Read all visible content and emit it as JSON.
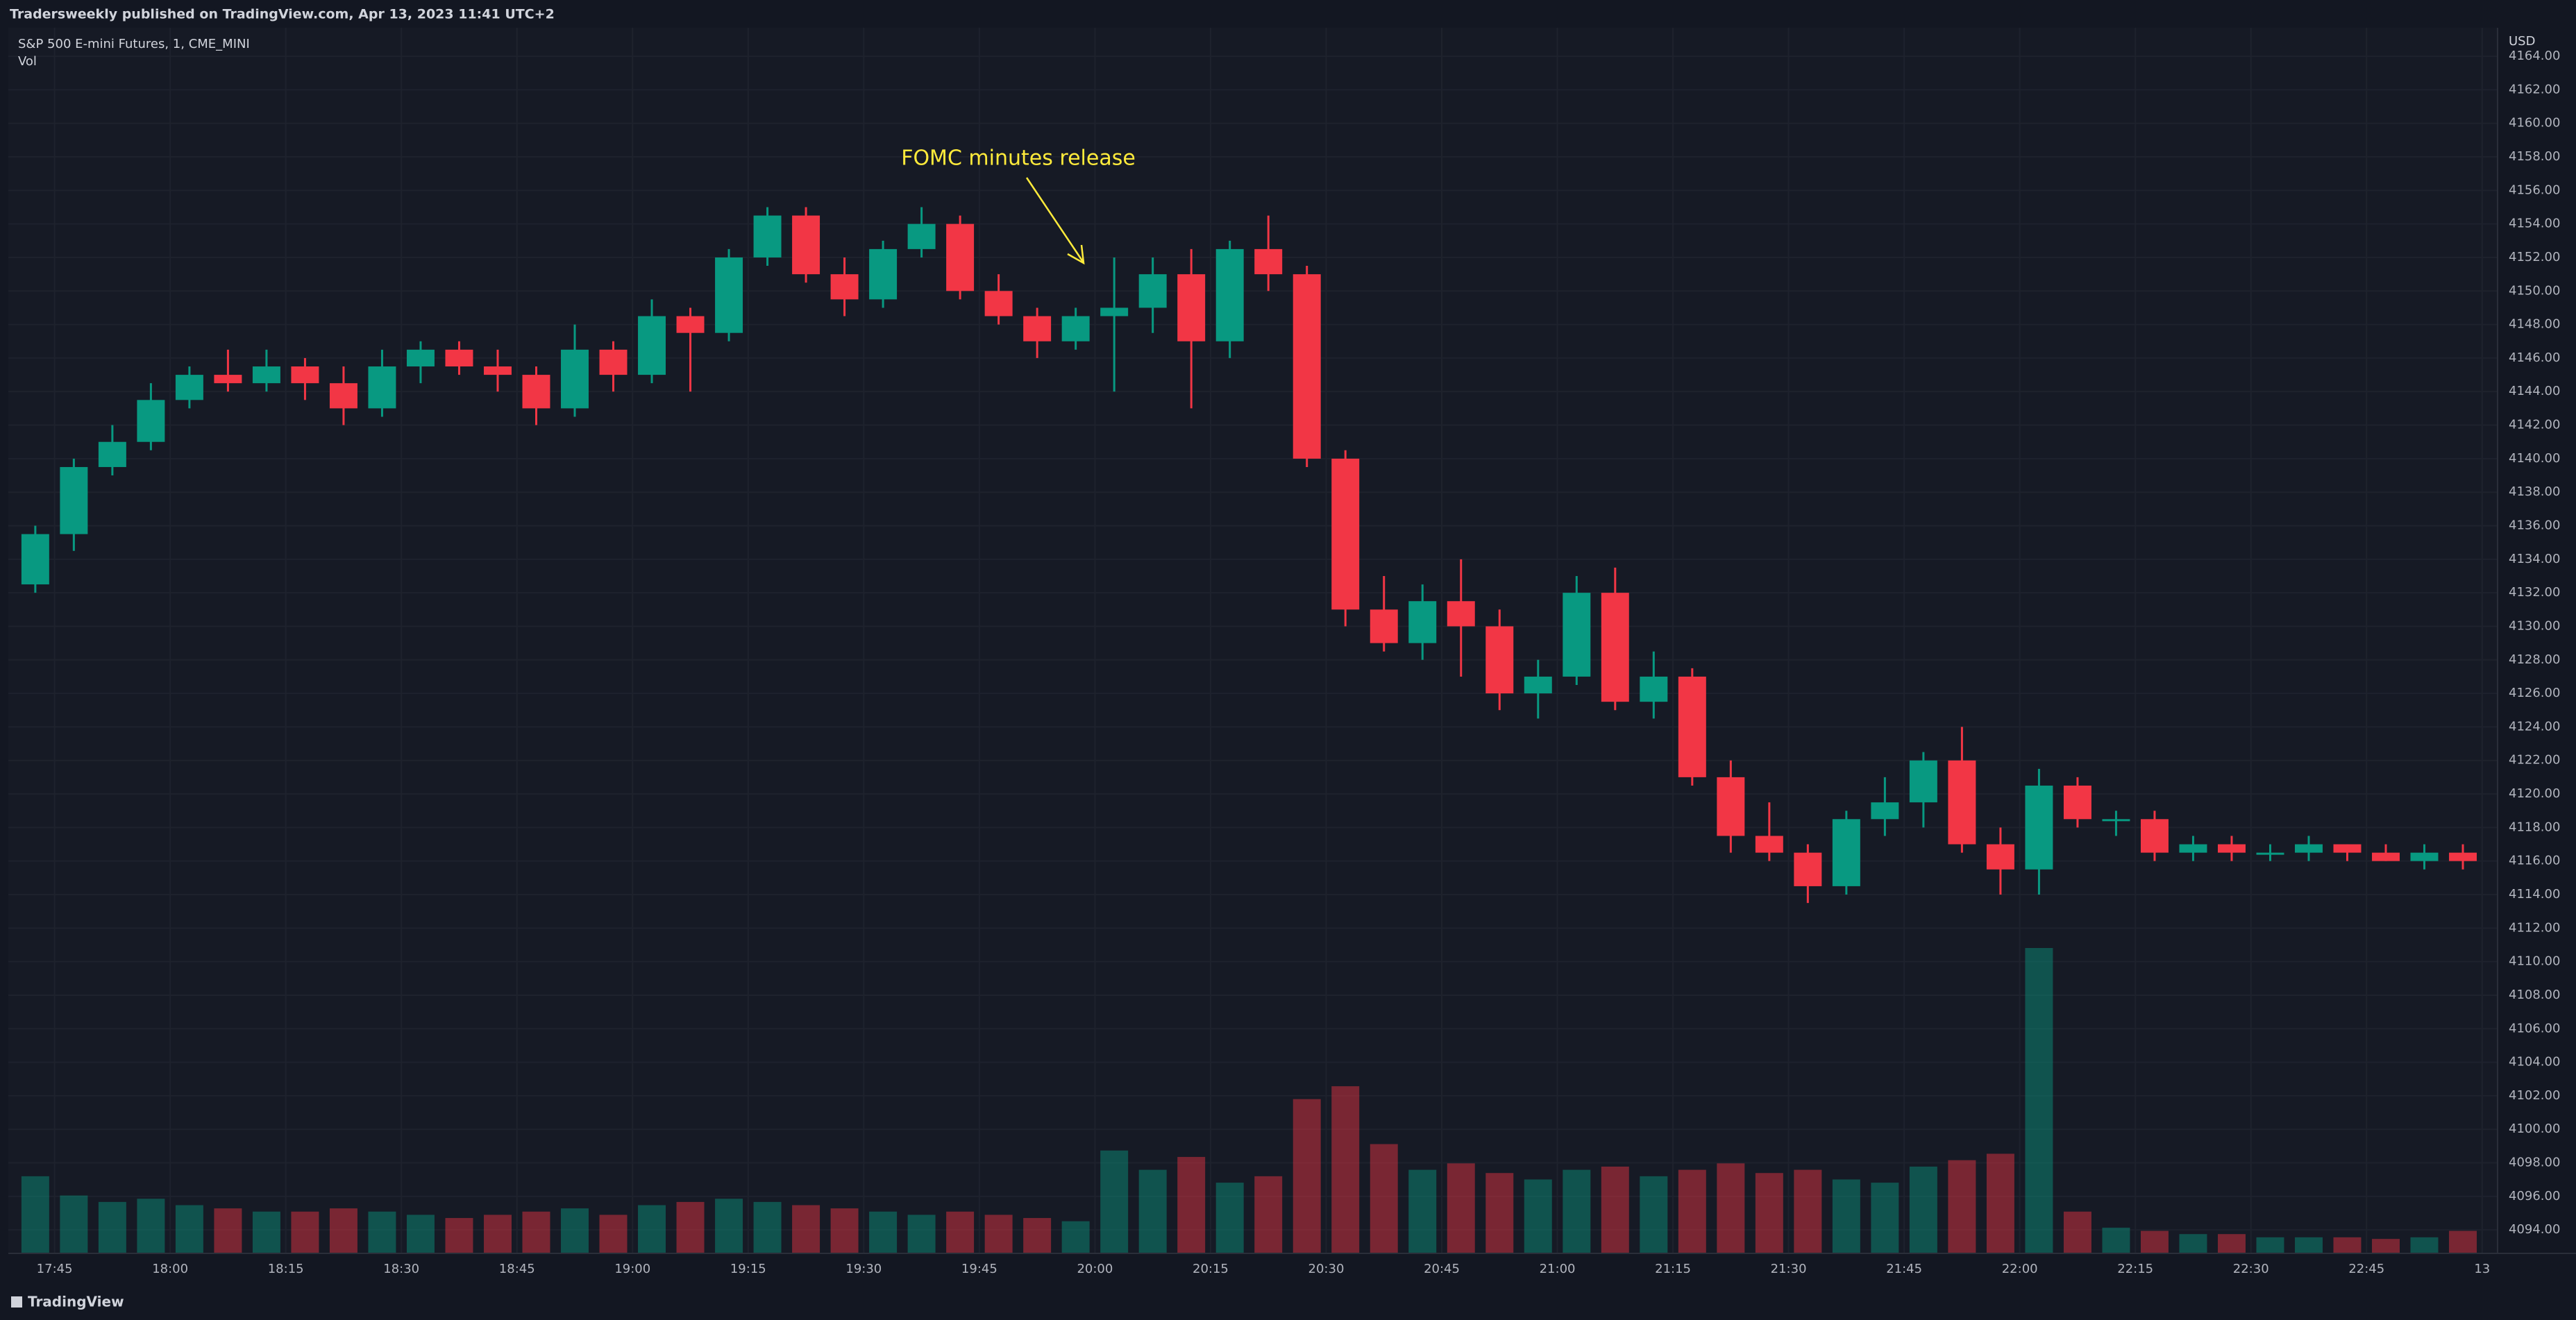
{
  "header": {
    "publisher": "Tradersweekly published on TradingView.com, Apr 13, 2023 11:41 UTC+2",
    "symbol": "S&P 500 E-mini Futures, 1, CME_MINI",
    "study": "Vol",
    "currency": "USD"
  },
  "footer": {
    "brand": "TradingView"
  },
  "chart_data": {
    "type": "candlestick",
    "annotation": "FOMC minutes release",
    "up_color": "#089981",
    "down_color": "#f23645",
    "x": [
      "17:40",
      "17:45",
      "17:50",
      "17:55",
      "18:00",
      "18:05",
      "18:10",
      "18:15",
      "18:20",
      "18:25",
      "18:30",
      "18:35",
      "18:40",
      "18:45",
      "18:50",
      "18:55",
      "19:00",
      "19:05",
      "19:10",
      "19:15",
      "19:20",
      "19:25",
      "19:30",
      "19:35",
      "19:40",
      "19:45",
      "19:50",
      "19:55",
      "20:00",
      "20:05",
      "20:10",
      "20:15",
      "20:20",
      "20:25",
      "20:30",
      "20:35",
      "20:40",
      "20:45",
      "20:50",
      "20:55",
      "21:00",
      "21:05",
      "21:10",
      "21:15",
      "21:20",
      "21:25",
      "21:30",
      "21:35",
      "21:40",
      "21:45",
      "21:50",
      "21:55",
      "22:00",
      "22:05",
      "22:10",
      "22:15",
      "22:20",
      "22:25",
      "22:30",
      "22:35",
      "22:40",
      "22:45",
      "22:50",
      "22:55"
    ],
    "open": [
      4132.5,
      4135.5,
      4139.5,
      4141,
      4143.5,
      4145,
      4144.5,
      4145.5,
      4144.5,
      4143,
      4145.5,
      4146.5,
      4145.5,
      4145,
      4143,
      4146.5,
      4145,
      4148.5,
      4147.5,
      4152,
      4154.5,
      4151,
      4149.5,
      4152.5,
      4154,
      4150,
      4148.5,
      4147,
      4148.5,
      4149,
      4151,
      4147,
      4152.5,
      4151,
      4140,
      4131,
      4129,
      4131.5,
      4130,
      4126,
      4127,
      4132,
      4125.5,
      4127,
      4121,
      4117.5,
      4116.5,
      4114.5,
      4118.5,
      4119.5,
      4122,
      4117,
      4115.5,
      4120.5,
      4118.5,
      4118.5,
      4116.5,
      4117,
      4116.5,
      4116.5,
      4117,
      4116.5,
      4116,
      4116.5
    ],
    "high": [
      4136,
      4140,
      4142,
      4144.5,
      4145.5,
      4146.5,
      4146.5,
      4146,
      4145.5,
      4146.5,
      4147,
      4147,
      4146.5,
      4145.5,
      4148,
      4147,
      4149.5,
      4149,
      4152.5,
      4155,
      4155,
      4152,
      4153,
      4155,
      4154.5,
      4151,
      4149,
      4149,
      4152,
      4152,
      4152.5,
      4153,
      4154.5,
      4151.5,
      4140.5,
      4133,
      4132.5,
      4134,
      4131,
      4128,
      4133,
      4133.5,
      4128.5,
      4127.5,
      4122,
      4119.5,
      4117,
      4119,
      4121,
      4122.5,
      4124,
      4118,
      4121.5,
      4121,
      4119,
      4119,
      4117.5,
      4117.5,
      4117,
      4117.5,
      4117,
      4117,
      4117,
      4117
    ],
    "low": [
      4132,
      4134.5,
      4139,
      4140.5,
      4143,
      4144,
      4144,
      4143.5,
      4142,
      4142.5,
      4144.5,
      4145,
      4144,
      4142,
      4142.5,
      4144,
      4144.5,
      4144,
      4147,
      4151.5,
      4150.5,
      4148.5,
      4149,
      4152,
      4149.5,
      4148,
      4146,
      4146.5,
      4144,
      4147.5,
      4143,
      4146,
      4150,
      4139.5,
      4130,
      4128.5,
      4128,
      4127,
      4125,
      4124.5,
      4126.5,
      4125,
      4124.5,
      4120.5,
      4116.5,
      4116,
      4113.5,
      4114,
      4117.5,
      4118,
      4116.5,
      4114,
      4114,
      4118,
      4117.5,
      4116,
      4116,
      4116,
      4116,
      4116,
      4116,
      4116,
      4115.5,
      4115.5
    ],
    "close": [
      4135.5,
      4139.5,
      4141,
      4143.5,
      4145,
      4144.5,
      4145.5,
      4144.5,
      4143,
      4145.5,
      4146.5,
      4145.5,
      4145,
      4143,
      4146.5,
      4145,
      4148.5,
      4147.5,
      4152,
      4154.5,
      4151,
      4149.5,
      4152.5,
      4154,
      4150,
      4148.5,
      4147,
      4148.5,
      4149,
      4151,
      4147,
      4152.5,
      4151,
      4140,
      4131,
      4129,
      4131.5,
      4130,
      4126,
      4127,
      4132,
      4125.5,
      4127,
      4121,
      4117.5,
      4116.5,
      4114.5,
      4118.5,
      4119.5,
      4122,
      4117,
      4115.5,
      4120.5,
      4118.5,
      4118.5,
      4116.5,
      4117,
      4116.5,
      4116.5,
      4117,
      4116.5,
      4116,
      4116.5,
      4116
    ],
    "volume": [
      2400,
      1800,
      1600,
      1700,
      1500,
      1400,
      1300,
      1300,
      1400,
      1300,
      1200,
      1100,
      1200,
      1300,
      1400,
      1200,
      1500,
      1600,
      1700,
      1600,
      1500,
      1400,
      1300,
      1200,
      1300,
      1200,
      1100,
      1000,
      3200,
      2600,
      3000,
      2200,
      2400,
      4800,
      5200,
      3400,
      2600,
      2800,
      2500,
      2300,
      2600,
      2700,
      2400,
      2600,
      2800,
      2500,
      2600,
      2300,
      2200,
      2700,
      2900,
      3100,
      9500,
      1300,
      800,
      700,
      600,
      600,
      500,
      500,
      500,
      450,
      500,
      700
    ],
    "xlim": [
      "17:39",
      "23:02"
    ],
    "xticks": [
      "17:45",
      "18:00",
      "18:15",
      "18:30",
      "18:45",
      "19:00",
      "19:15",
      "19:30",
      "19:45",
      "20:00",
      "20:15",
      "20:30",
      "20:45",
      "21:00",
      "21:15",
      "21:30",
      "21:45",
      "22:00",
      "22:15",
      "22:30",
      "22:45",
      {
        "value": "23:00",
        "label": "13"
      }
    ],
    "ylim": [
      4092.6,
      4165.7
    ],
    "yticks": [
      {
        "value": 4094,
        "label": "4094.00"
      },
      {
        "value": 4096,
        "label": "4096.00"
      },
      {
        "value": 4098,
        "label": "4098.00"
      },
      {
        "value": 4100,
        "label": "4100.00"
      },
      {
        "value": 4102,
        "label": "4102.00"
      },
      {
        "value": 4104,
        "label": "4104.00"
      },
      {
        "value": 4106,
        "label": "4106.00"
      },
      {
        "value": 4108,
        "label": "4108.00"
      },
      {
        "value": 4110,
        "label": "4110.00"
      },
      {
        "value": 4112,
        "label": "4112.00"
      },
      {
        "value": 4114,
        "label": "4114.00"
      },
      {
        "value": 4116,
        "label": "4116.00"
      },
      {
        "value": 4118,
        "label": "4118.00"
      },
      {
        "value": 4120,
        "label": "4120.00"
      },
      {
        "value": 4122,
        "label": "4122.00"
      },
      {
        "value": 4124,
        "label": "4124.00"
      },
      {
        "value": 4126,
        "label": "4126.00"
      },
      {
        "value": 4128,
        "label": "4128.00"
      },
      {
        "value": 4130,
        "label": "4130.00"
      },
      {
        "value": 4132,
        "label": "4132.00"
      },
      {
        "value": 4134,
        "label": "4134.00"
      },
      {
        "value": 4136,
        "label": "4136.00"
      },
      {
        "value": 4138,
        "label": "4138.00"
      },
      {
        "value": 4140,
        "label": "4140.00"
      },
      {
        "value": 4142,
        "label": "4142.00"
      },
      {
        "value": 4144,
        "label": "4144.00"
      },
      {
        "value": 4146,
        "label": "4146.00"
      },
      {
        "value": 4148,
        "label": "4148.00"
      },
      {
        "value": 4150,
        "label": "4150.00"
      },
      {
        "value": 4152,
        "label": "4152.00"
      },
      {
        "value": 4154,
        "label": "4154.00"
      },
      {
        "value": 4156,
        "label": "4156.00"
      },
      {
        "value": 4158,
        "label": "4158.00"
      },
      {
        "value": 4160,
        "label": "4160.00"
      },
      {
        "value": 4162,
        "label": "4162.00"
      },
      {
        "value": 4164,
        "label": "4164.00"
      }
    ],
    "grid": true
  }
}
